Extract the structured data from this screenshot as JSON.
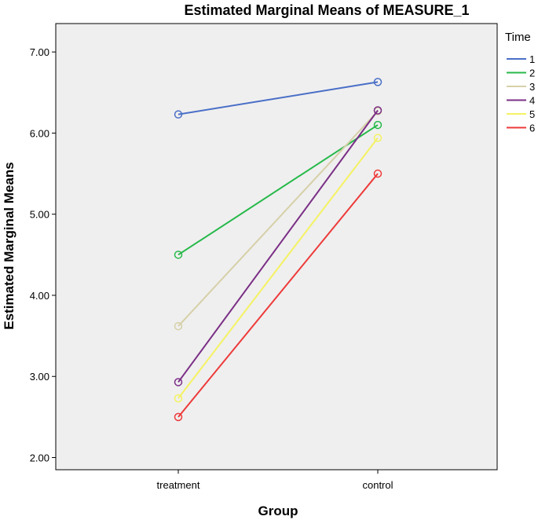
{
  "chart_data": {
    "type": "line",
    "title": "Estimated Marginal Means of MEASURE_1",
    "xlabel": "Group",
    "ylabel": "Estimated Marginal Means",
    "categories": [
      "treatment",
      "control"
    ],
    "ylim": [
      1.85,
      7.35
    ],
    "yticks": [
      "2.00",
      "3.00",
      "4.00",
      "5.00",
      "6.00",
      "7.00"
    ],
    "grid": false,
    "legend": {
      "title": "Time",
      "placement": "right"
    },
    "series": [
      {
        "name": "1",
        "values": [
          6.23,
          6.63
        ],
        "color": "#4a6fc7"
      },
      {
        "name": "2",
        "values": [
          4.5,
          6.1
        ],
        "color": "#27b94a"
      },
      {
        "name": "3",
        "values": [
          3.62,
          6.27
        ],
        "color": "#d6d0a8"
      },
      {
        "name": "4",
        "values": [
          2.93,
          6.28
        ],
        "color": "#7b2f86"
      },
      {
        "name": "5",
        "values": [
          2.73,
          5.94
        ],
        "color": "#f4f262"
      },
      {
        "name": "6",
        "values": [
          2.5,
          5.5
        ],
        "color": "#ee3a3a"
      }
    ]
  }
}
